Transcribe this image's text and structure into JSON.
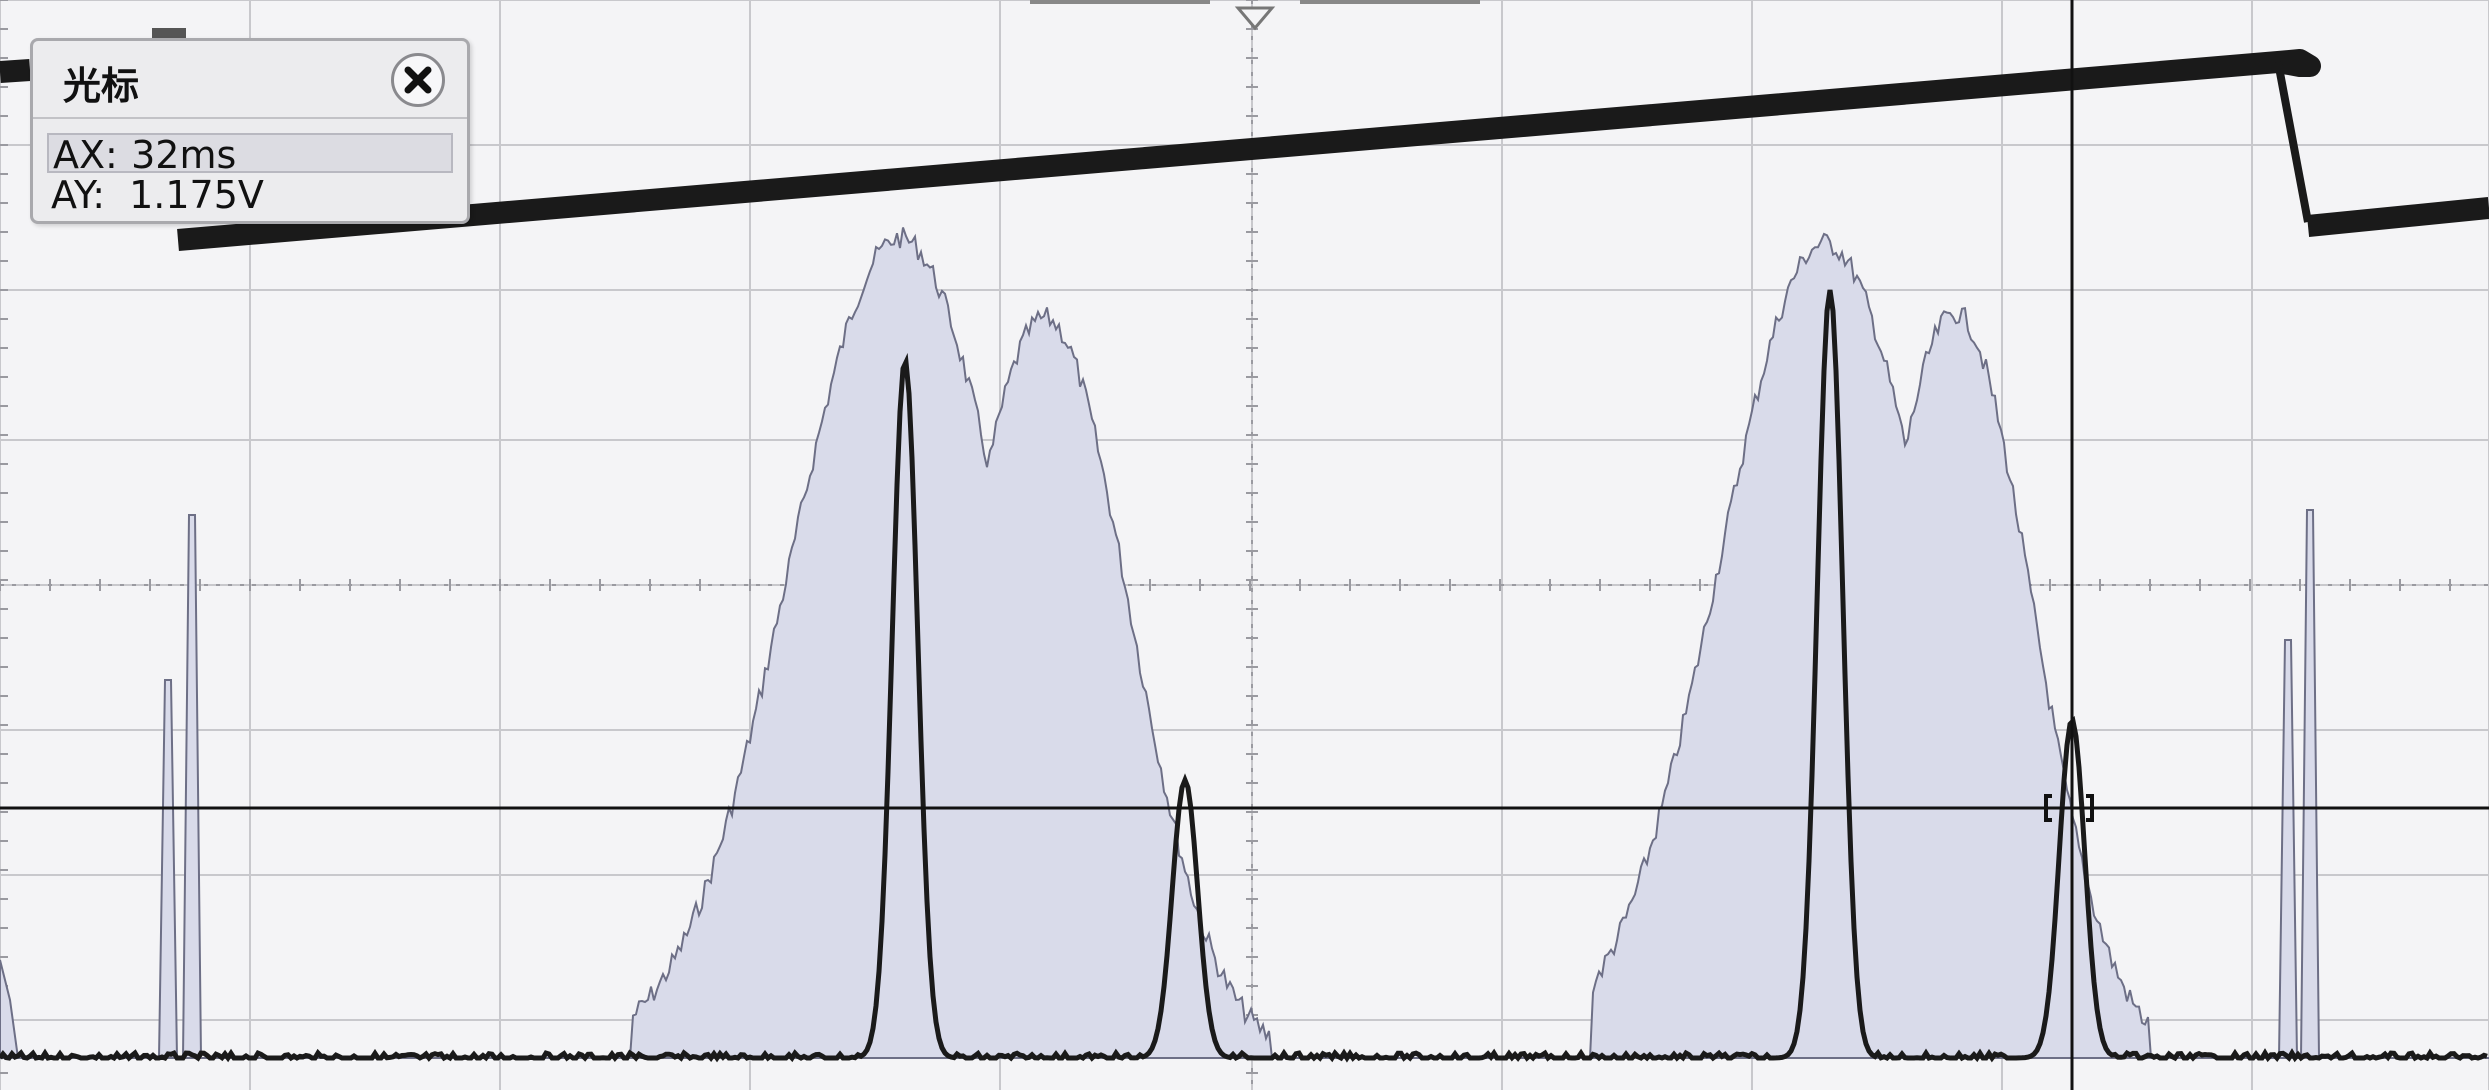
{
  "cursor_panel": {
    "title": "光标",
    "ax_label": "AX:",
    "ax_value": "32ms",
    "ay_label": "AY:",
    "ay_value": "1.175V"
  },
  "colors": {
    "background": "#f4f4f6",
    "grid": "#c8c8cc",
    "grid_dots": "#9a9aa0",
    "trace": "#1a1a1a",
    "spectrum_fill": "#d9dbea",
    "spectrum_edge": "#6d6f86",
    "cursor_line": "#111111"
  },
  "icons": {
    "close": "close-icon",
    "trigger_marker": "trigger-position-icon"
  }
}
